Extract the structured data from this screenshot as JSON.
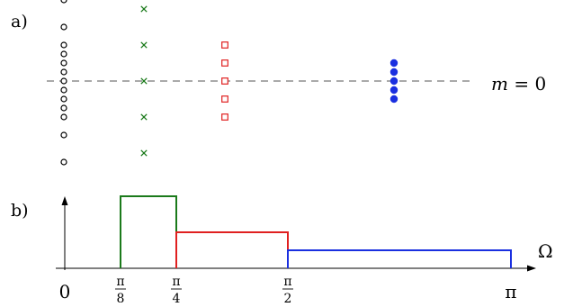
{
  "panel_a": {
    "label": "a)",
    "baseline_label": "m = 0",
    "m_label_var": "m",
    "m_label_rest": " = 0",
    "columns": [
      {
        "marker": "circle",
        "color": "#000000",
        "m_values": [
          -4.5,
          -3.0,
          -2.0,
          -1.5,
          -1.0,
          -0.5,
          0.0,
          0.5,
          1.0,
          1.5,
          2.0,
          3.0,
          4.5
        ]
      },
      {
        "marker": "cross",
        "color": "#1b7a1b",
        "m_values": [
          -4.0,
          -2.0,
          0.0,
          2.0,
          4.0
        ]
      },
      {
        "marker": "square",
        "color": "#e02020",
        "m_values": [
          -2.0,
          -1.0,
          0.0,
          1.0,
          2.0
        ]
      },
      {
        "marker": "dot",
        "color": "#1a2fe0",
        "m_values": [
          -1.0,
          -0.5,
          0.0,
          0.5,
          1.0
        ]
      }
    ]
  },
  "panel_b": {
    "label": "b)",
    "axis_label": "Ω",
    "ticks": [
      {
        "value": 0,
        "type": "plain",
        "text": "0"
      },
      {
        "value": 0.125,
        "type": "frac",
        "num": "π",
        "den": "8"
      },
      {
        "value": 0.25,
        "type": "frac",
        "num": "π",
        "den": "4"
      },
      {
        "value": 0.5,
        "type": "frac",
        "num": "π",
        "den": "2"
      },
      {
        "value": 1.0,
        "type": "plain",
        "text": "π"
      }
    ],
    "bands": [
      {
        "from": 0.125,
        "to": 0.25,
        "height": 4,
        "color": "#1b7a1b"
      },
      {
        "from": 0.25,
        "to": 0.5,
        "height": 2,
        "color": "#e02020"
      },
      {
        "from": 0.5,
        "to": 1.0,
        "height": 1,
        "color": "#1a2fe0"
      }
    ]
  }
}
